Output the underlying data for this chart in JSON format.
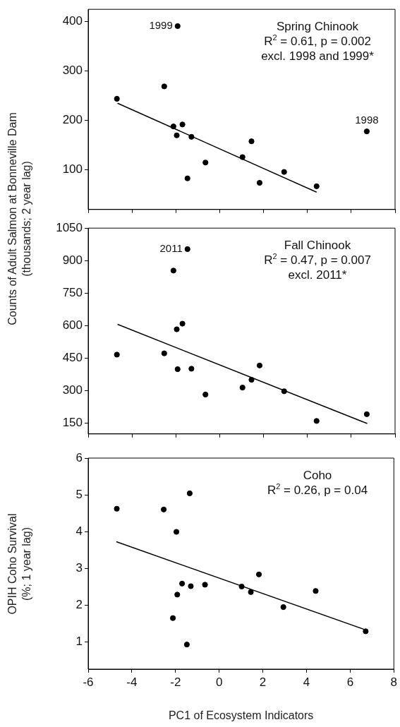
{
  "chart_data": [
    {
      "type": "scatter",
      "ylabel": "Counts of Adult Salmon at Bonneville Dam\n(thousands; 2 year lag)",
      "xlim": [
        -6,
        8
      ],
      "xticks": [
        -6,
        -4,
        -2,
        0,
        2,
        4,
        6,
        8
      ],
      "ylim": [
        20,
        425
      ],
      "yticks": [
        100,
        200,
        300,
        400
      ],
      "tick_labels": "y",
      "grid": false,
      "legend": false,
      "series": [
        {
          "type": "scatter",
          "marker": "circle",
          "color": "#000000",
          "x": [
            -4.69,
            -2.53,
            -1.92,
            -2.11,
            -1.7,
            -1.96,
            -1.29,
            -1.47,
            -0.65,
            1.04,
            1.45,
            1.82,
            2.94,
            4.42,
            6.71
          ],
          "values": [
            244,
            269,
            391,
            188,
            192,
            170,
            167,
            83,
            115,
            126,
            158,
            74,
            96,
            67,
            178
          ]
        },
        {
          "type": "line",
          "color": "#000000",
          "x": [
            -4.66,
            4.42
          ],
          "values": [
            235,
            55
          ]
        }
      ],
      "annotations": [
        "Spring Chinook",
        "R$^{2}$ = 0.61, p = 0.002",
        "excl. 1998 and 1999*",
        {
          "text": "1999",
          "x": -1.92,
          "y": 391
        },
        {
          "text": "1998",
          "x": 6.71,
          "y": 178
        }
      ]
    },
    {
      "type": "scatter",
      "xlim": [
        -6,
        8
      ],
      "xticks": [
        -6,
        -4,
        -2,
        0,
        2,
        4,
        6,
        8
      ],
      "ylim": [
        100,
        1050
      ],
      "yticks": [
        150,
        300,
        450,
        600,
        750,
        900,
        1050
      ],
      "tick_labels": "y",
      "grid": false,
      "legend": false,
      "series": [
        {
          "type": "scatter",
          "marker": "circle",
          "color": "#000000",
          "x": [
            -4.69,
            -2.53,
            -1.47,
            -2.11,
            -1.96,
            -1.7,
            -1.92,
            -1.29,
            -0.65,
            1.04,
            1.45,
            1.82,
            2.94,
            4.42,
            6.71
          ],
          "values": [
            466,
            472,
            953,
            854,
            583,
            609,
            399,
            401,
            282,
            314,
            350,
            416,
            297,
            160,
            191
          ]
        },
        {
          "type": "line",
          "color": "#000000",
          "x": [
            -4.66,
            6.73
          ],
          "values": [
            606,
            148
          ]
        }
      ],
      "annotations": [
        "Fall Chinook",
        "R$^{2}$ = 0.47, p = 0.007",
        "excl. 2011*",
        {
          "text": "2011",
          "x": -1.47,
          "y": 953
        }
      ]
    },
    {
      "type": "scatter",
      "ylabel": "OPIH Coho Survival\n(%; 1 year lag)",
      "xlabel": "PC1 of Ecosystem Indicators",
      "xlim": [
        -6,
        8
      ],
      "xticks": [
        -6,
        -4,
        -2,
        0,
        2,
        4,
        6,
        8
      ],
      "ylim": [
        0.25,
        6
      ],
      "yticks": [
        1,
        2,
        3,
        4,
        5,
        6
      ],
      "grid": false,
      "legend": false,
      "series": [
        {
          "type": "scatter",
          "marker": "circle",
          "color": "#000000",
          "x": [
            -4.69,
            -2.54,
            -1.35,
            -1.96,
            -1.7,
            -1.3,
            -0.65,
            -1.92,
            -2.12,
            -1.48,
            1.03,
            1.45,
            1.82,
            2.94,
            4.42,
            6.71
          ],
          "values": [
            4.62,
            4.6,
            5.04,
            3.99,
            2.58,
            2.51,
            2.55,
            2.28,
            1.64,
            0.92,
            2.5,
            2.35,
            2.83,
            1.94,
            2.38,
            1.28
          ]
        },
        {
          "type": "line",
          "color": "#000000",
          "x": [
            -4.71,
            6.7
          ],
          "values": [
            3.72,
            1.32
          ]
        }
      ],
      "annotations": [
        "Coho",
        "R$^{2}$ = 0.26, p = 0.04"
      ]
    }
  ]
}
